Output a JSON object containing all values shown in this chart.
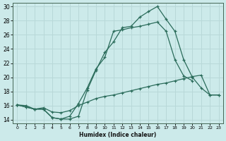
{
  "xlabel": "Humidex (Indice chaleur)",
  "bg_color": "#cceaea",
  "grid_color": "#b8d8d8",
  "line_color": "#2a6b5a",
  "xlim": [
    -0.5,
    23.5
  ],
  "ylim": [
    13.5,
    30.5
  ],
  "xticks": [
    0,
    1,
    2,
    3,
    4,
    5,
    6,
    7,
    8,
    9,
    10,
    11,
    12,
    13,
    14,
    15,
    16,
    17,
    18,
    19,
    20,
    21,
    22,
    23
  ],
  "yticks": [
    14,
    16,
    18,
    20,
    22,
    24,
    26,
    28,
    30
  ],
  "line1_x": [
    0,
    1,
    2,
    3,
    4,
    5,
    6,
    7,
    8,
    9,
    10,
    11,
    12,
    13,
    14,
    15,
    16,
    17,
    18,
    19,
    20,
    21,
    22,
    23
  ],
  "line1_y": [
    16.1,
    16.0,
    15.5,
    15.5,
    14.3,
    14.1,
    14.1,
    14.5,
    18.2,
    21.0,
    23.5,
    25.0,
    27.0,
    27.2,
    28.5,
    29.3,
    30.0,
    28.2,
    26.5,
    22.5,
    20.0,
    18.5,
    17.5,
    17.5
  ],
  "line2_x": [
    0,
    1,
    2,
    3,
    4,
    5,
    6,
    7,
    8,
    9,
    10,
    11,
    12,
    13,
    14,
    15,
    16,
    17,
    18,
    19,
    20,
    21,
    22,
    23
  ],
  "line2_y": [
    16.1,
    15.8,
    15.5,
    15.5,
    14.3,
    14.1,
    14.5,
    16.3,
    18.5,
    21.2,
    22.8,
    26.5,
    26.7,
    27.0,
    27.2,
    27.5,
    27.8,
    26.5,
    22.5,
    20.2,
    19.5,
    null,
    null,
    null
  ],
  "line3_x": [
    0,
    1,
    2,
    3,
    4,
    5,
    6,
    7,
    8,
    9,
    10,
    11,
    12,
    13,
    14,
    15,
    16,
    17,
    18,
    19,
    20,
    21,
    22,
    23
  ],
  "line3_y": [
    16.1,
    15.8,
    15.5,
    15.7,
    15.1,
    15.0,
    15.3,
    16.0,
    16.5,
    17.0,
    17.3,
    17.5,
    17.8,
    18.1,
    18.4,
    18.7,
    19.0,
    19.2,
    19.5,
    19.8,
    20.1,
    20.3,
    17.5,
    17.5
  ]
}
